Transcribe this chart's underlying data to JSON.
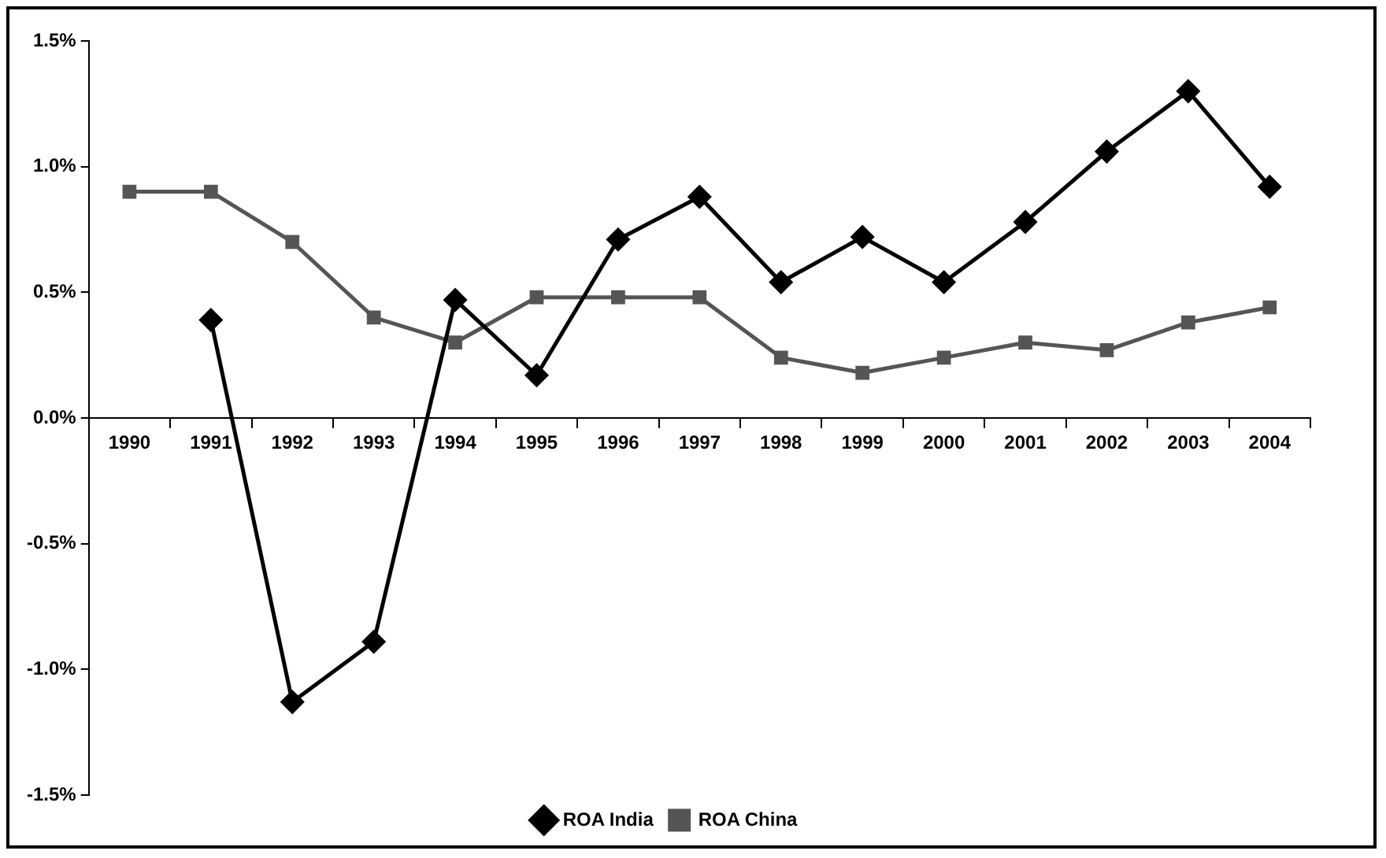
{
  "chart_data": {
    "type": "line",
    "categories": [
      "1990",
      "1991",
      "1992",
      "1993",
      "1994",
      "1995",
      "1996",
      "1997",
      "1998",
      "1999",
      "2000",
      "2001",
      "2002",
      "2003",
      "2004"
    ],
    "series": [
      {
        "name": "ROA India",
        "color": "#000000",
        "marker": "diamond",
        "values": [
          null,
          0.39,
          -1.13,
          -0.89,
          0.47,
          0.17,
          0.71,
          0.88,
          0.54,
          0.72,
          0.54,
          0.78,
          1.06,
          1.3,
          0.92
        ]
      },
      {
        "name": "ROA China",
        "color": "#555555",
        "marker": "square",
        "values": [
          0.9,
          0.9,
          0.7,
          0.4,
          0.3,
          0.48,
          0.48,
          0.48,
          0.24,
          0.18,
          0.24,
          0.3,
          0.27,
          0.38,
          0.44
        ]
      }
    ],
    "ylim": [
      -1.5,
      1.5
    ],
    "yticks": [
      {
        "value": -1.5,
        "label": "-1.5%"
      },
      {
        "value": -1.0,
        "label": "-1.0%"
      },
      {
        "value": -0.5,
        "label": "-0.5%"
      },
      {
        "value": 0,
        "label": "0.0%"
      },
      {
        "value": 0.5,
        "label": "0.5%"
      },
      {
        "value": 1.0,
        "label": "1.0%"
      },
      {
        "value": 1.5,
        "label": "1.5%"
      }
    ],
    "grid": false,
    "legend": "bottom",
    "line_style": "solid"
  }
}
